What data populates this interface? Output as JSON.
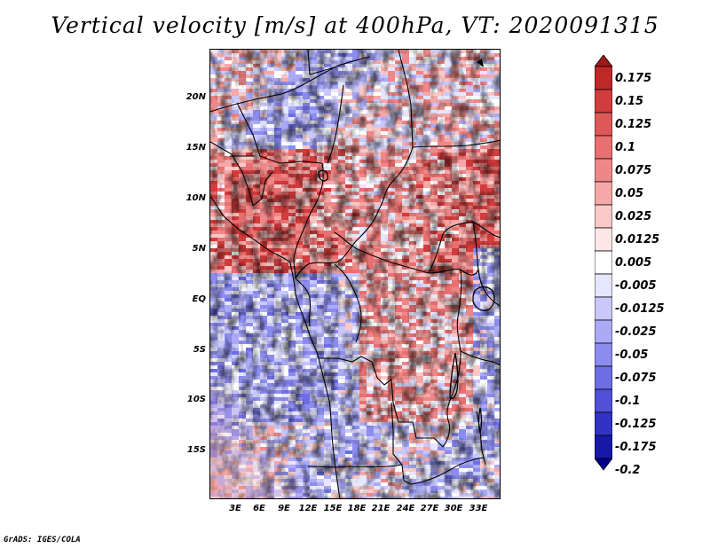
{
  "title": "Vertical velocity [m/s] at 400hPa, VT: 2020091315",
  "footer": "GrADS: IGES/COLA",
  "map": {
    "lat_range": [
      -20,
      25
    ],
    "lon_range": [
      0,
      36
    ],
    "lat_labels": [
      "20N",
      "15N",
      "10N",
      "5N",
      "EQ",
      "5S",
      "10S",
      "15S"
    ],
    "lon_labels": [
      "3E",
      "6E",
      "9E",
      "12E",
      "15E",
      "18E",
      "21E",
      "24E",
      "27E",
      "30E",
      "33E"
    ]
  },
  "colorbar": {
    "labels": [
      "0.175",
      "0.15",
      "0.125",
      "0.1",
      "0.075",
      "0.05",
      "0.025",
      "0.0125",
      "0.005",
      "-0.005",
      "-0.0125",
      "-0.025",
      "-0.05",
      "-0.075",
      "-0.1",
      "-0.125",
      "-0.175",
      "-0.2"
    ],
    "colors": [
      "#a01818",
      "#c02828",
      "#d23c3c",
      "#de5858",
      "#e87070",
      "#ee8888",
      "#f4a8a8",
      "#f9c8c8",
      "#fde6e6",
      "#ffffff",
      "#e6e6ff",
      "#c8c8fb",
      "#aaaaf5",
      "#8c8cee",
      "#6e6ee4",
      "#5050d8",
      "#3232c4",
      "#1818a8",
      "#00008c"
    ]
  }
}
